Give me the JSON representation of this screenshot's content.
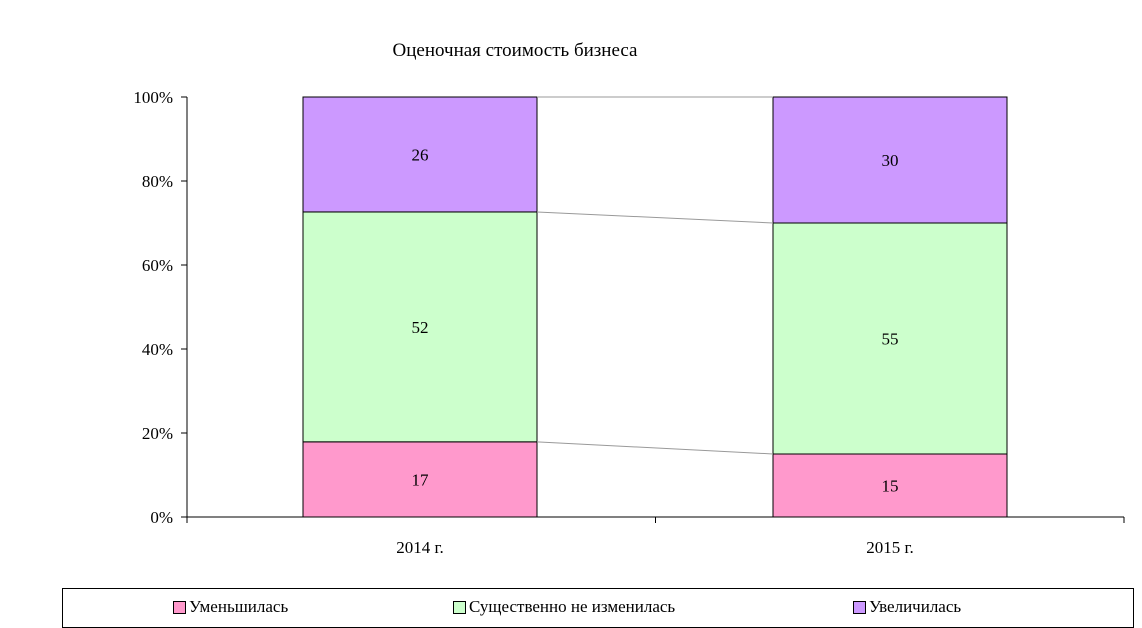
{
  "chart_data": {
    "type": "bar",
    "stacked": true,
    "percent": true,
    "title": "Оценочная стоимость бизнеса",
    "categories": [
      "2014 г.",
      "2015 г."
    ],
    "series": [
      {
        "name": "Уменьшилась",
        "values": [
          17,
          15
        ],
        "color": "#ff99cc"
      },
      {
        "name": "Существенно не изменилась",
        "values": [
          52,
          55
        ],
        "color": "#ccffcc"
      },
      {
        "name": "Увеличилась",
        "values": [
          26,
          30
        ],
        "color": "#cc99ff"
      }
    ],
    "y_ticks": [
      "0%",
      "20%",
      "40%",
      "60%",
      "80%",
      "100%"
    ],
    "ylim": [
      0,
      100
    ],
    "series_lines": true,
    "legend_position": "bottom"
  }
}
